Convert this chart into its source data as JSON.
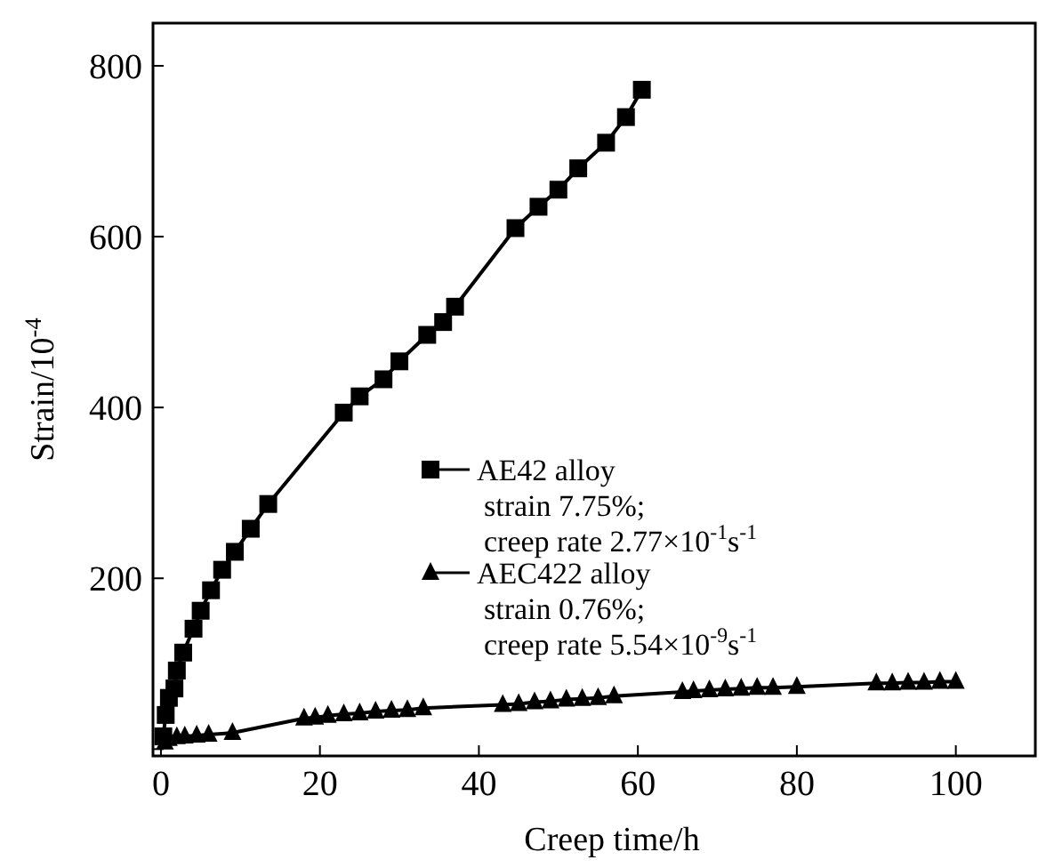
{
  "chart_data": {
    "type": "line",
    "xlabel": "Creep time/h",
    "ylabel": "Strain/10$^{-4}$",
    "xlim": [
      -1,
      110
    ],
    "ylim": [
      -8,
      850
    ],
    "xticks": [
      0,
      20,
      40,
      60,
      80,
      100
    ],
    "yticks": [
      {
        "value": 0,
        "label": null
      },
      200,
      400,
      600,
      800
    ],
    "legend": "bottom",
    "grid": false,
    "annotations": [
      "strain 7.75%;",
      "creep rate 2.77×10$^{-1}$s$^{-1}$",
      "strain 0.76%;",
      "creep rate 5.54×10$^{-9}$s$^{-1}$"
    ],
    "series": [
      {
        "name": "AE42 alloy",
        "color": "#000000",
        "marker": "square",
        "x": [
          0.3,
          0.6,
          1,
          1.7,
          2,
          2.8,
          4.1,
          5,
          6.3,
          7.7,
          9.3,
          11.3,
          13.5,
          23,
          25,
          28,
          30,
          33.5,
          35.5,
          37,
          44.6,
          47.5,
          50,
          52.5,
          56,
          58.5,
          60.5
        ],
        "values": [
          15,
          40,
          60,
          71,
          92,
          113,
          141,
          162,
          186,
          210,
          231,
          258,
          287,
          394,
          413,
          433,
          454,
          485,
          500,
          518,
          610,
          635,
          655,
          680,
          710,
          740,
          772
        ]
      },
      {
        "name": "AEC422 alloy",
        "color": "#000000",
        "marker": "triangle",
        "x": [
          0.5,
          1,
          2,
          3,
          4.5,
          6,
          9,
          18,
          19.4,
          21,
          23,
          25,
          27,
          29,
          31,
          33,
          43,
          45,
          47,
          49,
          51,
          53,
          55,
          57,
          65.6,
          67,
          69,
          71,
          73,
          75,
          77,
          80,
          90,
          92,
          94,
          96,
          98,
          100
        ],
        "values": [
          8,
          12,
          14,
          15,
          16,
          17,
          19,
          36,
          37,
          39,
          41,
          42,
          44,
          45,
          46,
          48,
          52,
          53,
          55,
          56,
          58,
          59,
          60,
          62,
          67,
          68,
          69,
          70,
          71,
          72,
          72,
          73,
          77,
          77,
          78,
          78,
          79,
          79
        ]
      }
    ]
  }
}
